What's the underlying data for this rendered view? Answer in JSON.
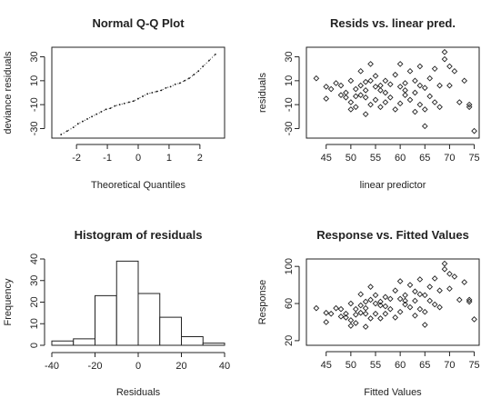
{
  "chart_data": [
    {
      "type": "scatter",
      "title": "Normal Q-Q Plot",
      "xlabel": "Theoretical Quantiles",
      "ylabel": "deviance residuals",
      "xlim": [
        -2.8,
        2.8
      ],
      "ylim": [
        -38,
        38
      ],
      "xticks": [
        -2,
        -1,
        0,
        1,
        2
      ],
      "yticks": [
        -30,
        -10,
        10,
        30
      ],
      "x": [
        -2.5,
        -2.3,
        -2.1,
        -1.95,
        -1.8,
        -1.65,
        -1.5,
        -1.35,
        -1.2,
        -1.05,
        -0.9,
        -0.75,
        -0.6,
        -0.45,
        -0.3,
        -0.15,
        0,
        0.15,
        0.3,
        0.45,
        0.6,
        0.75,
        0.9,
        1.05,
        1.2,
        1.35,
        1.5,
        1.65,
        1.8,
        1.95,
        2.1,
        2.3,
        2.5
      ],
      "y": [
        -35,
        -32,
        -29,
        -26,
        -24,
        -22,
        -20,
        -18,
        -16,
        -14,
        -13,
        -11,
        -10,
        -9,
        -8,
        -7,
        -5,
        -3,
        -1,
        0,
        1,
        2,
        4,
        5,
        7,
        8,
        10,
        12,
        15,
        18,
        22,
        27,
        32
      ]
    },
    {
      "type": "scatter",
      "title": "Resids vs. linear pred.",
      "xlabel": "linear predictor",
      "ylabel": "residuals",
      "xlim": [
        41,
        76
      ],
      "ylim": [
        -38,
        38
      ],
      "xticks": [
        45,
        50,
        55,
        60,
        65,
        70,
        75
      ],
      "yticks": [
        -30,
        -10,
        10,
        30
      ],
      "x": [
        43,
        45,
        45,
        46,
        47,
        48,
        48,
        49,
        49,
        50,
        50,
        50,
        51,
        51,
        51,
        52,
        52,
        52,
        53,
        53,
        53,
        53,
        54,
        54,
        54,
        55,
        55,
        55,
        56,
        56,
        56,
        57,
        57,
        57,
        58,
        58,
        59,
        59,
        60,
        60,
        60,
        61,
        61,
        61,
        62,
        62,
        63,
        63,
        63,
        64,
        64,
        64,
        65,
        65,
        65,
        66,
        66,
        67,
        67,
        68,
        68,
        69,
        69,
        70,
        70,
        71,
        72,
        73,
        74,
        74,
        75
      ],
      "y": [
        12,
        5,
        -5,
        3,
        8,
        -2,
        6,
        -4,
        0,
        10,
        -8,
        -14,
        3,
        -3,
        -12,
        18,
        6,
        -2,
        -4,
        2,
        9,
        -18,
        24,
        10,
        -10,
        14,
        5,
        -6,
        2,
        -12,
        6,
        10,
        0,
        -8,
        7,
        -4,
        15,
        -14,
        24,
        5,
        -9,
        2,
        -2,
        8,
        18,
        -6,
        10,
        0,
        -16,
        22,
        -10,
        6,
        -28,
        4,
        -14,
        12,
        -3,
        20,
        -8,
        6,
        -12,
        34,
        28,
        22,
        6,
        18,
        -8,
        10,
        -10,
        -12,
        -32
      ]
    },
    {
      "type": "bar",
      "title": "Histogram of residuals",
      "xlabel": "Residuals",
      "ylabel": "Frequency",
      "xlim": [
        -40,
        40
      ],
      "ylim": [
        0,
        40
      ],
      "xticks": [
        -40,
        -20,
        0,
        20,
        40
      ],
      "yticks": [
        0,
        10,
        20,
        30,
        40
      ],
      "bin_edges": [
        -40,
        -30,
        -20,
        -10,
        0,
        10,
        20,
        30,
        40
      ],
      "values": [
        2,
        3,
        23,
        39,
        24,
        13,
        4,
        1
      ]
    },
    {
      "type": "scatter",
      "title": "Response vs. Fitted Values",
      "xlabel": "Fitted Values",
      "ylabel": "Response",
      "xlim": [
        41,
        76
      ],
      "ylim": [
        15,
        108
      ],
      "xticks": [
        45,
        50,
        55,
        60,
        65,
        70,
        75
      ],
      "yticks": [
        20,
        60,
        100
      ],
      "x": [
        43,
        45,
        45,
        46,
        47,
        48,
        48,
        49,
        49,
        50,
        50,
        50,
        51,
        51,
        51,
        52,
        52,
        52,
        53,
        53,
        53,
        53,
        54,
        54,
        54,
        55,
        55,
        55,
        56,
        56,
        56,
        57,
        57,
        57,
        58,
        58,
        59,
        59,
        60,
        60,
        60,
        61,
        61,
        61,
        62,
        62,
        63,
        63,
        63,
        64,
        64,
        64,
        65,
        65,
        65,
        66,
        66,
        67,
        67,
        68,
        68,
        69,
        69,
        70,
        70,
        71,
        72,
        73,
        74,
        74,
        75
      ],
      "y": [
        55,
        50,
        40,
        49,
        55,
        46,
        54,
        45,
        49,
        60,
        42,
        36,
        54,
        48,
        39,
        70,
        58,
        50,
        49,
        55,
        62,
        35,
        78,
        64,
        44,
        69,
        60,
        49,
        58,
        44,
        62,
        67,
        57,
        49,
        65,
        54,
        74,
        45,
        84,
        65,
        51,
        63,
        59,
        69,
        80,
        56,
        73,
        63,
        47,
        86,
        54,
        70,
        37,
        69,
        51,
        78,
        63,
        87,
        59,
        74,
        56,
        103,
        97,
        92,
        76,
        89,
        64,
        83,
        64,
        62,
        43
      ]
    }
  ]
}
